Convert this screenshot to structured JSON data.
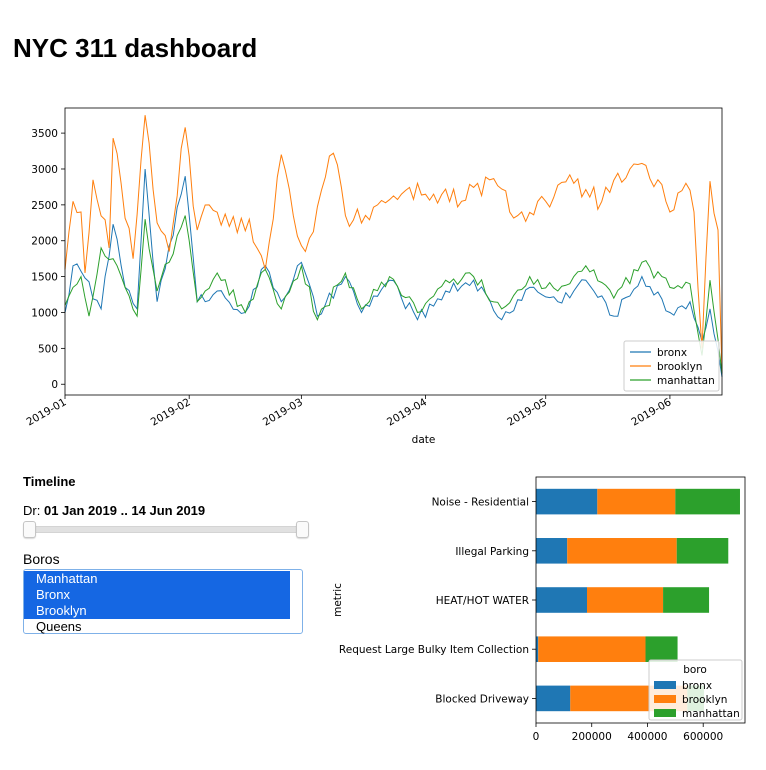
{
  "page": {
    "title": "NYC 311 dashboard"
  },
  "timeline": {
    "title": "Timeline",
    "range_label": "Dr:",
    "range_value": "01 Jan 2019 .. 14 Jun 2019",
    "boros_label": "Boros",
    "options": [
      {
        "label": "Manhattan",
        "selected": true
      },
      {
        "label": "Bronx",
        "selected": true
      },
      {
        "label": "Brooklyn",
        "selected": true
      },
      {
        "label": "Queens",
        "selected": false
      }
    ]
  },
  "colors": {
    "bronx": "#1f77b4",
    "brooklyn": "#ff7f0e",
    "manhattan": "#2ca02c",
    "select_highlight": "#1567e3"
  },
  "chart_data": [
    {
      "type": "line",
      "xlabel": "date",
      "ylabel": "",
      "ylim": [
        -150,
        3850
      ],
      "yticks": [
        0,
        500,
        1000,
        1500,
        2000,
        2500,
        3000,
        3500
      ],
      "xlim": [
        "2019-01-01",
        "2019-06-14"
      ],
      "xtick_labels": [
        "2019-01",
        "2019-02",
        "2019-03",
        "2019-04",
        "2019-05",
        "2019-06"
      ],
      "legend_position": "lower-right",
      "grid": false,
      "series": [
        {
          "name": "bronx",
          "anchors": [
            [
              "2019-01-01",
              1000
            ],
            [
              "2019-01-03",
              1650
            ],
            [
              "2019-01-06",
              1480
            ],
            [
              "2019-01-10",
              1050
            ],
            [
              "2019-01-13",
              2230
            ],
            [
              "2019-01-16",
              1350
            ],
            [
              "2019-01-19",
              1050
            ],
            [
              "2019-01-21",
              3000
            ],
            [
              "2019-01-24",
              1150
            ],
            [
              "2019-01-31",
              2900
            ],
            [
              "2019-02-03",
              1150
            ],
            [
              "2019-02-08",
              1300
            ],
            [
              "2019-02-15",
              1000
            ],
            [
              "2019-02-20",
              1650
            ],
            [
              "2019-02-24",
              1150
            ],
            [
              "2019-03-01",
              1700
            ],
            [
              "2019-03-05",
              950
            ],
            [
              "2019-03-12",
              1500
            ],
            [
              "2019-03-16",
              1000
            ],
            [
              "2019-03-23",
              1450
            ],
            [
              "2019-03-30",
              900
            ],
            [
              "2019-04-06",
              1300
            ],
            [
              "2019-04-13",
              1450
            ],
            [
              "2019-04-20",
              900
            ],
            [
              "2019-04-27",
              1350
            ],
            [
              "2019-05-04",
              1150
            ],
            [
              "2019-05-11",
              1450
            ],
            [
              "2019-05-18",
              950
            ],
            [
              "2019-05-25",
              1500
            ],
            [
              "2019-06-01",
              1000
            ],
            [
              "2019-06-06",
              1150
            ],
            [
              "2019-06-09",
              600
            ],
            [
              "2019-06-11",
              1050
            ],
            [
              "2019-06-14",
              100
            ]
          ]
        },
        {
          "name": "brooklyn",
          "anchors": [
            [
              "2019-01-01",
              1600
            ],
            [
              "2019-01-03",
              2550
            ],
            [
              "2019-01-05",
              2400
            ],
            [
              "2019-01-06",
              1550
            ],
            [
              "2019-01-08",
              2850
            ],
            [
              "2019-01-12",
              1900
            ],
            [
              "2019-01-13",
              3430
            ],
            [
              "2019-01-15",
              2800
            ],
            [
              "2019-01-18",
              1750
            ],
            [
              "2019-01-21",
              3750
            ],
            [
              "2019-01-24",
              2250
            ],
            [
              "2019-01-27",
              1850
            ],
            [
              "2019-01-31",
              3580
            ],
            [
              "2019-02-03",
              2150
            ],
            [
              "2019-02-06",
              2500
            ],
            [
              "2019-02-11",
              2200
            ],
            [
              "2019-02-16",
              2300
            ],
            [
              "2019-02-20",
              1600
            ],
            [
              "2019-02-24",
              3200
            ],
            [
              "2019-02-27",
              2350
            ],
            [
              "2019-03-02",
              1850
            ],
            [
              "2019-03-06",
              2700
            ],
            [
              "2019-03-09",
              3220
            ],
            [
              "2019-03-13",
              2200
            ],
            [
              "2019-03-20",
              2500
            ],
            [
              "2019-03-27",
              2700
            ],
            [
              "2019-04-03",
              2650
            ],
            [
              "2019-04-10",
              2550
            ],
            [
              "2019-04-17",
              2850
            ],
            [
              "2019-04-24",
              2350
            ],
            [
              "2019-05-01",
              2550
            ],
            [
              "2019-05-08",
              2800
            ],
            [
              "2019-05-15",
              2550
            ],
            [
              "2019-05-22",
              3000
            ],
            [
              "2019-05-29",
              2850
            ],
            [
              "2019-06-01",
              2400
            ],
            [
              "2019-06-05",
              2800
            ],
            [
              "2019-06-07",
              2400
            ],
            [
              "2019-06-09",
              500
            ],
            [
              "2019-06-11",
              2830
            ],
            [
              "2019-06-13",
              2150
            ],
            [
              "2019-06-14",
              150
            ]
          ]
        },
        {
          "name": "manhattan",
          "anchors": [
            [
              "2019-01-01",
              1100
            ],
            [
              "2019-01-03",
              1350
            ],
            [
              "2019-01-05",
              1500
            ],
            [
              "2019-01-07",
              950
            ],
            [
              "2019-01-10",
              1900
            ],
            [
              "2019-01-13",
              1750
            ],
            [
              "2019-01-16",
              1350
            ],
            [
              "2019-01-19",
              950
            ],
            [
              "2019-01-21",
              2300
            ],
            [
              "2019-01-24",
              1300
            ],
            [
              "2019-01-31",
              2350
            ],
            [
              "2019-02-03",
              1150
            ],
            [
              "2019-02-08",
              1550
            ],
            [
              "2019-02-15",
              1000
            ],
            [
              "2019-02-20",
              1600
            ],
            [
              "2019-02-24",
              1050
            ],
            [
              "2019-03-01",
              1650
            ],
            [
              "2019-03-05",
              900
            ],
            [
              "2019-03-12",
              1550
            ],
            [
              "2019-03-16",
              1050
            ],
            [
              "2019-03-23",
              1500
            ],
            [
              "2019-03-30",
              1000
            ],
            [
              "2019-04-06",
              1450
            ],
            [
              "2019-04-13",
              1500
            ],
            [
              "2019-04-20",
              1050
            ],
            [
              "2019-04-27",
              1500
            ],
            [
              "2019-05-04",
              1300
            ],
            [
              "2019-05-11",
              1650
            ],
            [
              "2019-05-18",
              1200
            ],
            [
              "2019-05-25",
              1700
            ],
            [
              "2019-06-01",
              1350
            ],
            [
              "2019-06-06",
              1400
            ],
            [
              "2019-06-09",
              400
            ],
            [
              "2019-06-11",
              1450
            ],
            [
              "2019-06-14",
              150
            ]
          ]
        }
      ]
    },
    {
      "type": "bar",
      "orientation": "horizontal",
      "stacked": true,
      "ylabel": "metric",
      "xlabel": "",
      "xlim": [
        0,
        750000
      ],
      "xticks": [
        0,
        200000,
        400000,
        600000
      ],
      "legend_title": "boro",
      "legend_position": "lower-right",
      "categories": [
        "Noise - Residential",
        "Illegal Parking",
        "HEAT/HOT WATER",
        "Request Large Bulky Item Collection",
        "Blocked Driveway"
      ],
      "series": [
        {
          "name": "bronx",
          "values": [
            220000,
            112000,
            183000,
            8000,
            123000
          ]
        },
        {
          "name": "brooklyn",
          "values": [
            280000,
            393000,
            273000,
            385000,
            420000
          ]
        },
        {
          "name": "manhattan",
          "values": [
            232000,
            185000,
            165000,
            115000,
            60000
          ]
        }
      ]
    }
  ]
}
